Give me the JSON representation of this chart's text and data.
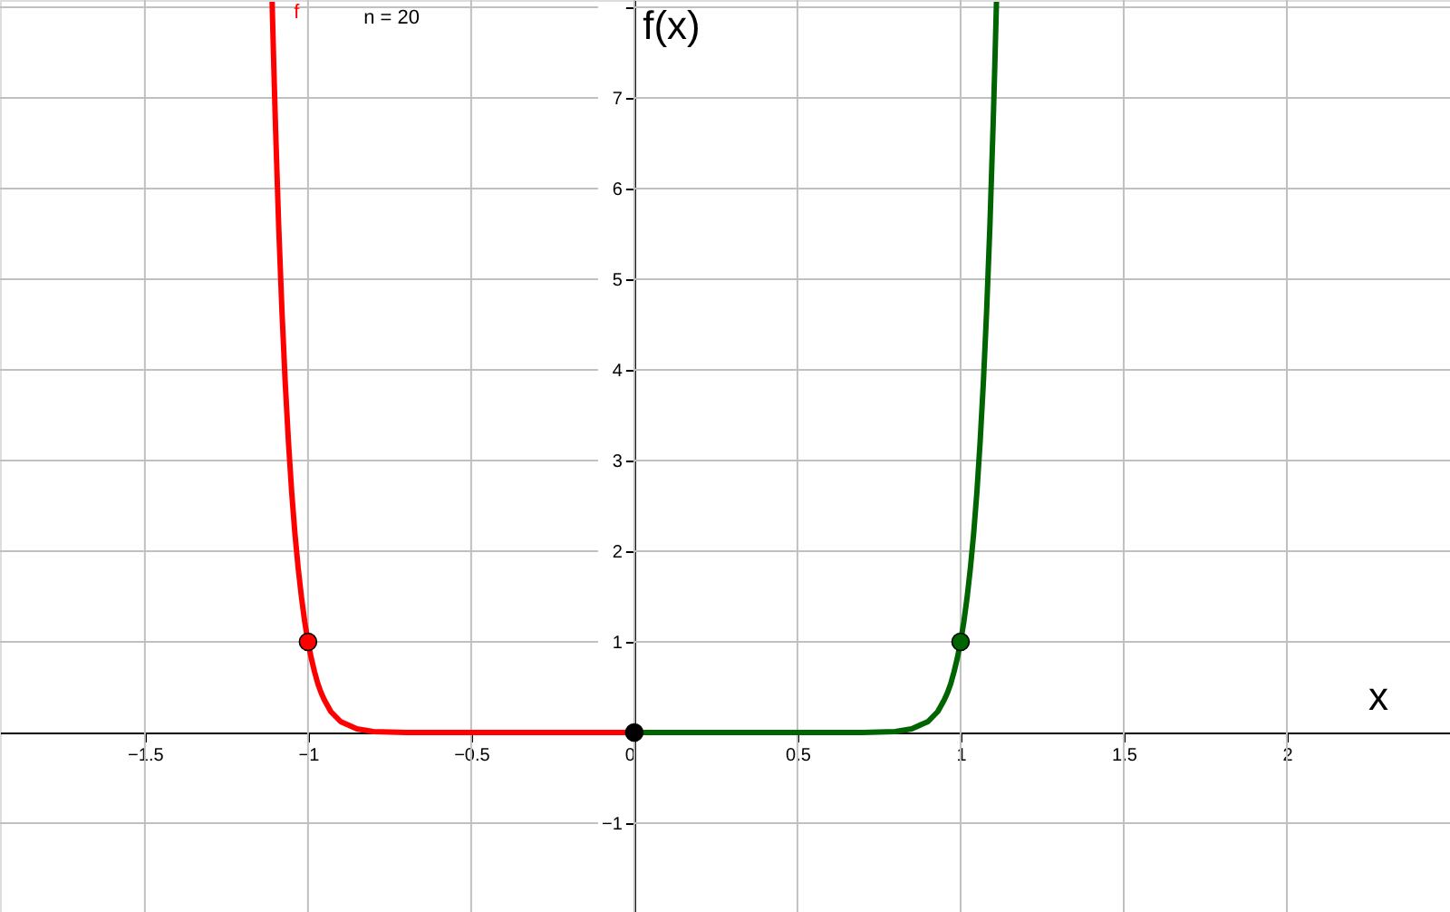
{
  "chart_data": {
    "type": "line",
    "xlabel": "x",
    "ylabel": "f(x)",
    "annotations": [
      "n = 20"
    ],
    "xlim": [
      -1.944,
      2.5
    ],
    "ylim": [
      -1.98,
      8.08
    ],
    "xticks": [
      -1.5,
      -1,
      -0.5,
      0,
      0.5,
      1,
      1.5,
      2
    ],
    "yticks": [
      -1,
      1,
      2,
      3,
      4,
      5,
      6,
      7,
      {
        "value": 8,
        "label": null
      }
    ],
    "grid": true,
    "series": [
      {
        "name": "f",
        "color": "#ff0000",
        "x": [
          -1.11,
          -1.108,
          -1.105,
          -1.1,
          -1.09,
          -1.08,
          -1.07,
          -1.06,
          -1.05,
          -1.04,
          -1.03,
          -1.02,
          -1.01,
          -1,
          -0.99,
          -0.98,
          -0.97,
          -0.96,
          -0.95,
          -0.93,
          -0.9,
          -0.85,
          -0.8,
          -0.7,
          -0.5,
          0
        ],
        "values": [
          8.06,
          7.78,
          7.37,
          6.73,
          5.6,
          4.66,
          3.87,
          3.21,
          2.65,
          2.19,
          1.81,
          1.49,
          1.22,
          1,
          0.82,
          0.67,
          0.54,
          0.44,
          0.36,
          0.23,
          0.12,
          0.04,
          0.01,
          0,
          0,
          0
        ]
      },
      {
        "color": "#006400",
        "x": [
          0,
          0.5,
          0.7,
          0.8,
          0.85,
          0.9,
          0.93,
          0.95,
          0.96,
          0.97,
          0.98,
          0.99,
          1,
          1.01,
          1.02,
          1.03,
          1.04,
          1.05,
          1.06,
          1.07,
          1.08,
          1.09,
          1.1,
          1.105,
          1.108,
          1.11
        ],
        "values": [
          0,
          0,
          0,
          0.01,
          0.04,
          0.12,
          0.23,
          0.36,
          0.44,
          0.54,
          0.67,
          0.82,
          1,
          1.22,
          1.49,
          1.81,
          2.19,
          2.65,
          3.21,
          3.87,
          4.66,
          5.6,
          6.73,
          7.37,
          7.78,
          8.06
        ]
      },
      {
        "type": "scatter",
        "marker": "circle",
        "color": "#ff0000",
        "x": [
          -1
        ],
        "values": [
          1
        ]
      },
      {
        "type": "scatter",
        "marker": "circle",
        "color": "#000000",
        "x": [
          0
        ],
        "values": [
          0
        ]
      },
      {
        "type": "scatter",
        "marker": "circle",
        "color": "#006400",
        "x": [
          1
        ],
        "values": [
          1
        ]
      }
    ]
  }
}
